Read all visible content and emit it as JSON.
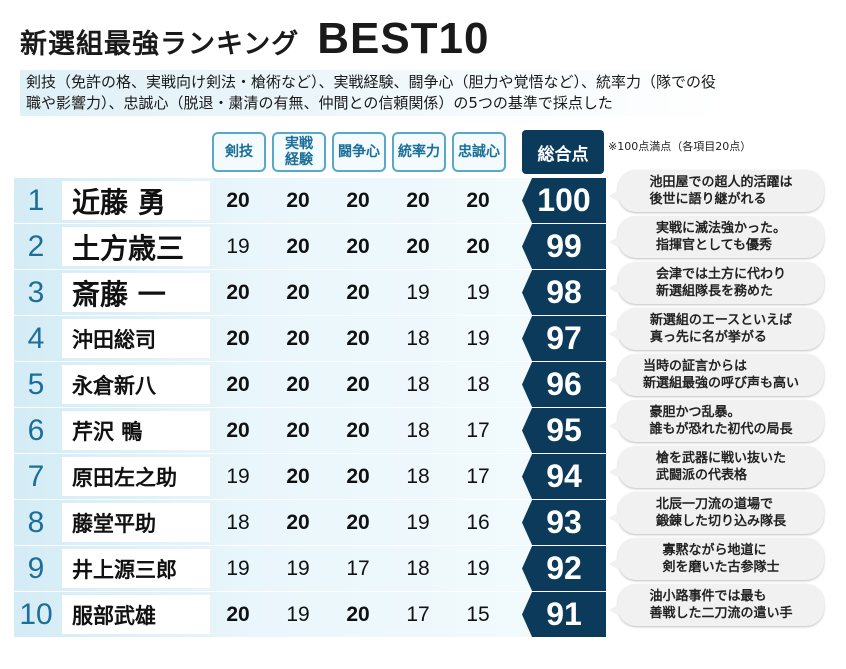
{
  "title": "新選組最強ランキング",
  "title_best": "BEST10",
  "description": "剣技（免許の格、実戦向け剣法・槍術など）、実戦経験、闘争心（胆力や覚悟など）、統率力（隊での役職や影響力）、忠誠心（脱退・粛清の有無、仲間との信頼関係）の5つの基準で採点した",
  "columns": [
    "剣技",
    "実戦\n経験",
    "闘争心",
    "統率力",
    "忠誠心"
  ],
  "total_label": "総合点",
  "note": "※100点満点（各項目20点）",
  "colors": {
    "accent": "#5aa8c8",
    "dark": "#0b3a5a",
    "row_bg": "#d4ecf6"
  },
  "rows": [
    {
      "rank": "1",
      "name": "近藤 勇",
      "scores": [
        "20",
        "20",
        "20",
        "20",
        "20"
      ],
      "total": "100",
      "comment": "池田屋での超人的活躍は\n後世に語り継がれる"
    },
    {
      "rank": "2",
      "name": "土方歳三",
      "scores": [
        "19",
        "20",
        "20",
        "20",
        "20"
      ],
      "total": "99",
      "comment": "実戦に滅法強かった。\n指揮官としても優秀"
    },
    {
      "rank": "3",
      "name": "斎藤 一",
      "scores": [
        "20",
        "20",
        "20",
        "19",
        "19"
      ],
      "total": "98",
      "comment": "会津では土方に代わり\n新選組隊長を務めた"
    },
    {
      "rank": "4",
      "name": "沖田総司",
      "scores": [
        "20",
        "20",
        "20",
        "18",
        "19"
      ],
      "total": "97",
      "comment": "新選組のエースといえば\n真っ先に名が挙がる"
    },
    {
      "rank": "5",
      "name": "永倉新八",
      "scores": [
        "20",
        "20",
        "20",
        "18",
        "18"
      ],
      "total": "96",
      "comment": "当時の証言からは\n新選組最強の呼び声も高い"
    },
    {
      "rank": "6",
      "name": "芹沢 鴨",
      "scores": [
        "20",
        "20",
        "20",
        "18",
        "17"
      ],
      "total": "95",
      "comment": "豪胆かつ乱暴。\n誰もが恐れた初代の局長"
    },
    {
      "rank": "7",
      "name": "原田左之助",
      "scores": [
        "19",
        "20",
        "20",
        "18",
        "17"
      ],
      "total": "94",
      "comment": "槍を武器に戦い抜いた\n武闘派の代表格"
    },
    {
      "rank": "8",
      "name": "藤堂平助",
      "scores": [
        "18",
        "20",
        "20",
        "19",
        "16"
      ],
      "total": "93",
      "comment": "北辰一刀流の道場で\n鍛錬した切り込み隊長"
    },
    {
      "rank": "9",
      "name": "井上源三郎",
      "scores": [
        "19",
        "19",
        "17",
        "18",
        "19"
      ],
      "total": "92",
      "comment": "寡黙ながら地道に\n剣を磨いた古参隊士"
    },
    {
      "rank": "10",
      "name": "服部武雄",
      "scores": [
        "20",
        "19",
        "20",
        "17",
        "15"
      ],
      "total": "91",
      "comment": "油小路事件では最も\n善戦した二刀流の遣い手"
    }
  ]
}
